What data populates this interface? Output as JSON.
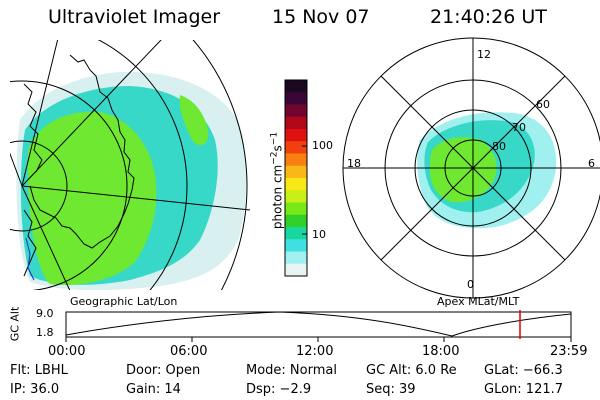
{
  "header": {
    "title": "Ultraviolet Imager",
    "date": "15 Nov 07",
    "time": "21:40:26 UT"
  },
  "colorbar": {
    "unit_label": "photon cm",
    "unit_exp1": "−2",
    "unit_mid": "s",
    "unit_exp2": "−1",
    "ticks": [
      "100",
      "10"
    ],
    "colors": [
      "#1a0820",
      "#3a0638",
      "#700630",
      "#b00818",
      "#e01010",
      "#f04010",
      "#f88010",
      "#f8b818",
      "#f8e818",
      "#c8f018",
      "#78e818",
      "#30d028",
      "#18d8a0",
      "#40e0e0",
      "#a0f0f0",
      "#e8f4f4"
    ]
  },
  "left_map": {
    "caption": "Geographic Lat/Lon",
    "fill_colors": [
      "#6ee830",
      "#38d8c8",
      "#9af0f0",
      "#d8f0f0"
    ]
  },
  "right_polar": {
    "caption": "Apex MLat/MLT",
    "mlt_labels": [
      "12",
      "18",
      "6",
      "0"
    ],
    "lat_labels": [
      "60",
      "70",
      "80"
    ]
  },
  "timeline": {
    "axis_label": "GC Alt",
    "y_ticks": [
      "9.0",
      "1.8"
    ],
    "x_ticks": [
      "00:00",
      "06:00",
      "12:00",
      "18:00",
      "23:59"
    ],
    "marker_color": "#e00000"
  },
  "status": {
    "flt": "Flt: LBHL",
    "ip": "IP: 36.0",
    "door": "Door: Open",
    "gain": "Gain: 14",
    "mode": "Mode: Normal",
    "dsp": "Dsp:    −2.9",
    "gcalt": "GC Alt: 6.0 Re",
    "seq": "Seq: 39",
    "glat": "GLat: −66.3",
    "glon": "GLon: 121.7"
  }
}
